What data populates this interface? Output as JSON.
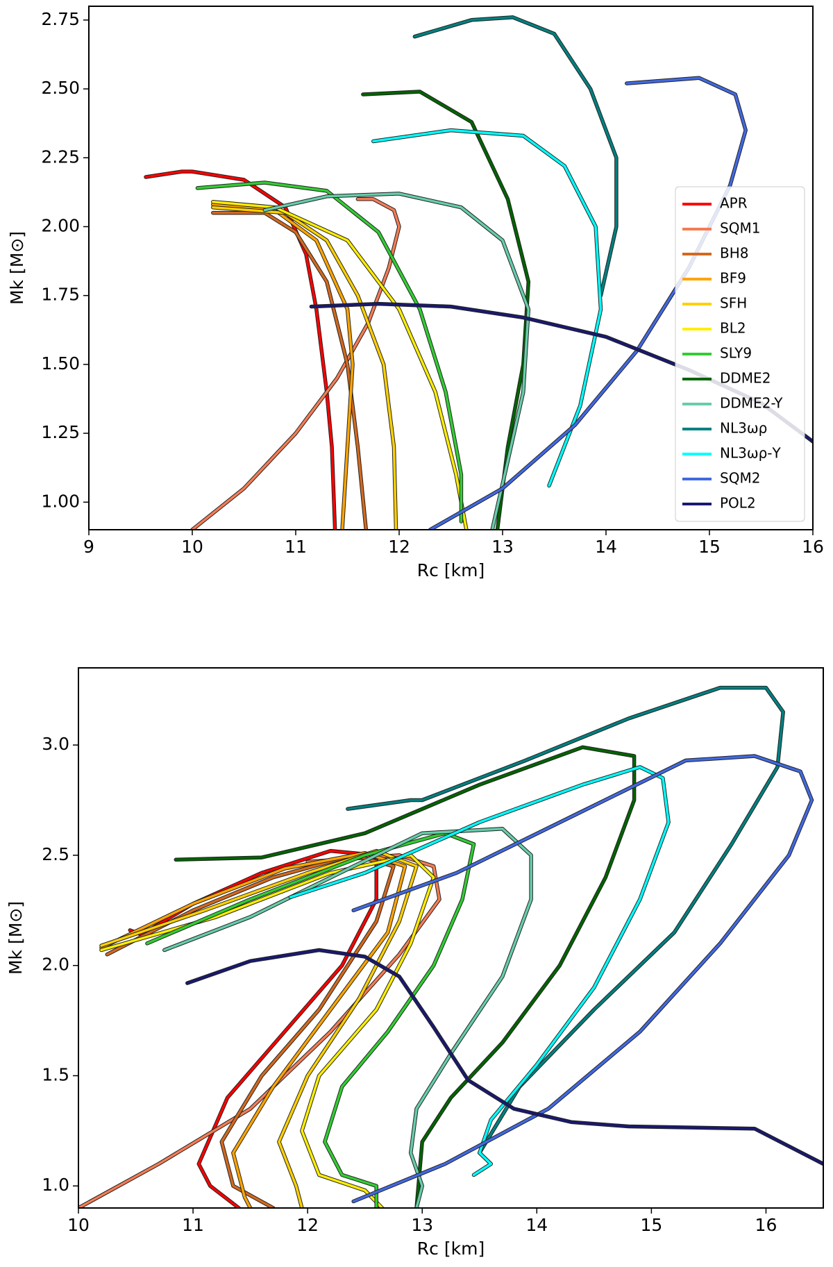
{
  "chart_data": [
    {
      "type": "line",
      "xlabel": "Rc [km]",
      "ylabel": "Mk [M⊙]",
      "xlim": [
        9,
        16
      ],
      "ylim": [
        0.9,
        2.8
      ],
      "xticks": [
        9,
        10,
        11,
        12,
        13,
        14,
        15,
        16
      ],
      "yticks": [
        {
          "value": 1,
          "label": "1.00"
        },
        1.25,
        {
          "value": 1.5,
          "label": "1.50"
        },
        1.75,
        {
          "value": 2,
          "label": "2.00"
        },
        2.25,
        {
          "value": 2.5,
          "label": "2.50"
        },
        2.75
      ],
      "legend": "lower right",
      "series": [
        {
          "name": "APR",
          "color": "#ff0000",
          "x": [
            9.55,
            9.9,
            10.0,
            10.5,
            10.9,
            11.1,
            11.2,
            11.3,
            11.35,
            11.38
          ],
          "values": [
            2.18,
            2.2,
            2.2,
            2.17,
            2.07,
            1.9,
            1.7,
            1.4,
            1.2,
            0.9
          ]
        },
        {
          "name": "SQM1",
          "color": "#f47c54",
          "x": [
            10.0,
            10.5,
            11.0,
            11.4,
            11.7,
            11.9,
            12.0,
            11.95,
            11.75,
            11.6
          ],
          "values": [
            0.9,
            1.05,
            1.25,
            1.45,
            1.65,
            1.85,
            2.0,
            2.06,
            2.1,
            2.1
          ]
        },
        {
          "name": "BH8",
          "color": "#d2691e",
          "x": [
            10.2,
            10.7,
            11.0,
            11.3,
            11.5,
            11.6,
            11.68
          ],
          "values": [
            2.05,
            2.05,
            1.98,
            1.8,
            1.5,
            1.2,
            0.9
          ]
        },
        {
          "name": "BF9",
          "color": "#ffa500",
          "x": [
            10.2,
            10.8,
            11.2,
            11.5,
            11.55,
            11.5,
            11.45
          ],
          "values": [
            2.08,
            2.06,
            1.95,
            1.7,
            1.5,
            1.2,
            0.9
          ]
        },
        {
          "name": "SFH",
          "color": "#ffd000",
          "x": [
            10.2,
            10.9,
            11.3,
            11.6,
            11.85,
            11.95,
            11.97
          ],
          "values": [
            2.07,
            2.05,
            1.95,
            1.75,
            1.5,
            1.2,
            0.9
          ]
        },
        {
          "name": "BL2",
          "color": "#ffee00",
          "x": [
            10.2,
            10.8,
            11.5,
            12.0,
            12.35,
            12.55,
            12.65
          ],
          "values": [
            2.09,
            2.07,
            1.95,
            1.7,
            1.4,
            1.1,
            0.9
          ]
        },
        {
          "name": "SLY9",
          "color": "#32cd32",
          "x": [
            10.05,
            10.7,
            11.3,
            11.8,
            12.2,
            12.45,
            12.6,
            12.6
          ],
          "values": [
            2.14,
            2.16,
            2.13,
            1.98,
            1.7,
            1.4,
            1.1,
            0.93
          ]
        },
        {
          "name": "DDME2",
          "color": "#006400",
          "x": [
            11.65,
            12.2,
            12.7,
            13.05,
            13.25,
            13.2,
            13.05,
            12.95
          ],
          "values": [
            2.48,
            2.49,
            2.38,
            2.1,
            1.8,
            1.5,
            1.2,
            0.9
          ]
        },
        {
          "name": "DDME2-Y",
          "color": "#66cdaa",
          "x": [
            10.7,
            11.3,
            12.0,
            12.6,
            13.0,
            13.25,
            13.2,
            13.05,
            12.9
          ],
          "values": [
            2.06,
            2.11,
            2.12,
            2.07,
            1.95,
            1.7,
            1.4,
            1.15,
            0.9
          ]
        },
        {
          "name": "NL3ωρ",
          "color": "#008080",
          "x": [
            12.15,
            12.7,
            13.1,
            13.5,
            13.85,
            14.1,
            14.1,
            13.95
          ],
          "values": [
            2.69,
            2.75,
            2.76,
            2.7,
            2.5,
            2.25,
            2.0,
            1.75
          ]
        },
        {
          "name": "NL3ωρ-Y",
          "color": "#00ffff",
          "x": [
            11.75,
            12.5,
            13.2,
            13.6,
            13.9,
            13.95,
            13.75,
            13.45
          ],
          "values": [
            2.31,
            2.35,
            2.33,
            2.22,
            2.0,
            1.7,
            1.35,
            1.06
          ]
        },
        {
          "name": "SQM2",
          "color": "#4169e1",
          "x": [
            12.3,
            13.0,
            13.7,
            14.3,
            14.8,
            15.2,
            15.35,
            15.25,
            14.9,
            14.2
          ],
          "values": [
            0.9,
            1.05,
            1.28,
            1.55,
            1.85,
            2.15,
            2.35,
            2.48,
            2.54,
            2.52
          ]
        },
        {
          "name": "POL2",
          "color": "#191970",
          "x": [
            11.15,
            11.8,
            12.5,
            13.2,
            14.0,
            14.8,
            15.5,
            16.0
          ],
          "values": [
            1.71,
            1.72,
            1.71,
            1.67,
            1.6,
            1.48,
            1.36,
            1.22
          ]
        }
      ]
    },
    {
      "type": "line",
      "xlabel": "Rc [km]",
      "ylabel": "Mk [M⊙]",
      "xlim": [
        10,
        16.5
      ],
      "ylim": [
        0.9,
        3.35
      ],
      "xticks": [
        10,
        11,
        12,
        13,
        14,
        15,
        16
      ],
      "yticks": [
        {
          "value": 1,
          "label": "1.0"
        },
        1.5,
        {
          "value": 2,
          "label": "2.0"
        },
        2.5,
        {
          "value": 3,
          "label": "3.0"
        }
      ],
      "series": [
        {
          "color": "#ff0000",
          "x": [
            10.45,
            10.55,
            11.0,
            11.6,
            12.2,
            12.6,
            12.6,
            12.3,
            11.8,
            11.3,
            11.05,
            11.15,
            11.4
          ],
          "values": [
            2.16,
            2.14,
            2.28,
            2.42,
            2.52,
            2.5,
            2.3,
            2.0,
            1.7,
            1.4,
            1.1,
            1.0,
            0.9
          ]
        },
        {
          "color": "#f47c54",
          "x": [
            10.0,
            10.7,
            11.5,
            12.2,
            12.8,
            13.15,
            13.1,
            12.8,
            12.0
          ],
          "values": [
            0.9,
            1.1,
            1.35,
            1.7,
            2.05,
            2.3,
            2.45,
            2.5,
            2.47
          ]
        },
        {
          "color": "#d2691e",
          "x": [
            10.25,
            11.0,
            11.7,
            12.4,
            12.75,
            12.6,
            12.1,
            11.6,
            11.25,
            11.35,
            11.7
          ],
          "values": [
            2.05,
            2.25,
            2.4,
            2.5,
            2.45,
            2.2,
            1.8,
            1.5,
            1.2,
            1.0,
            0.9
          ]
        },
        {
          "color": "#ffa500",
          "x": [
            10.2,
            11.0,
            11.8,
            12.5,
            12.85,
            12.7,
            12.2,
            11.7,
            11.35,
            11.45,
            11.5
          ],
          "values": [
            2.08,
            2.28,
            2.44,
            2.51,
            2.45,
            2.15,
            1.8,
            1.45,
            1.15,
            0.95,
            0.9
          ]
        },
        {
          "color": "#ffd000",
          "x": [
            10.2,
            11.1,
            12.0,
            12.6,
            12.95,
            12.8,
            12.45,
            12.0,
            11.75,
            11.9,
            11.95
          ],
          "values": [
            2.09,
            2.25,
            2.42,
            2.52,
            2.45,
            2.2,
            1.85,
            1.5,
            1.2,
            1.0,
            0.9
          ]
        },
        {
          "color": "#ffee00",
          "x": [
            10.2,
            11.2,
            12.2,
            12.9,
            13.1,
            12.9,
            12.6,
            12.1,
            11.95,
            12.1,
            12.5,
            12.65
          ],
          "values": [
            2.07,
            2.22,
            2.42,
            2.5,
            2.4,
            2.1,
            1.8,
            1.5,
            1.25,
            1.05,
            0.98,
            0.9
          ]
        },
        {
          "color": "#32cd32",
          "x": [
            10.6,
            11.5,
            12.5,
            13.2,
            13.45,
            13.35,
            13.1,
            12.7,
            12.3,
            12.15,
            12.3,
            12.6,
            12.6
          ],
          "values": [
            2.1,
            2.3,
            2.5,
            2.6,
            2.55,
            2.3,
            2.0,
            1.7,
            1.45,
            1.2,
            1.05,
            1.0,
            0.9
          ]
        },
        {
          "color": "#006400",
          "x": [
            10.85,
            11.6,
            12.5,
            13.5,
            14.4,
            14.85,
            14.85,
            14.6,
            14.2,
            13.7,
            13.25,
            13.0,
            12.95
          ],
          "values": [
            2.48,
            2.49,
            2.6,
            2.82,
            2.99,
            2.95,
            2.75,
            2.4,
            2.0,
            1.65,
            1.4,
            1.2,
            0.9
          ]
        },
        {
          "color": "#66cdaa",
          "x": [
            10.75,
            11.5,
            12.4,
            13.0,
            13.7,
            13.95,
            13.95,
            13.7,
            13.25,
            12.95,
            12.9,
            13.0,
            12.95
          ],
          "values": [
            2.07,
            2.22,
            2.45,
            2.6,
            2.62,
            2.5,
            2.3,
            1.95,
            1.6,
            1.35,
            1.15,
            1.0,
            0.9
          ]
        },
        {
          "color": "#008080",
          "x": [
            12.35,
            12.9,
            13.0,
            13.9,
            14.8,
            15.6,
            16.0,
            16.15,
            16.1,
            15.7,
            15.2,
            14.5,
            13.85,
            13.5
          ],
          "values": [
            2.71,
            2.75,
            2.75,
            2.93,
            3.12,
            3.26,
            3.26,
            3.15,
            2.9,
            2.55,
            2.15,
            1.8,
            1.45,
            1.15
          ]
        },
        {
          "color": "#00ffff",
          "x": [
            11.85,
            12.5,
            13.5,
            14.4,
            14.9,
            15.1,
            15.15,
            14.9,
            14.5,
            14.0,
            13.6,
            13.5,
            13.6,
            13.45
          ],
          "values": [
            2.31,
            2.42,
            2.65,
            2.82,
            2.9,
            2.85,
            2.65,
            2.3,
            1.9,
            1.55,
            1.3,
            1.15,
            1.1,
            1.05
          ]
        },
        {
          "color": "#4169e1",
          "x": [
            12.4,
            13.2,
            14.1,
            14.9,
            15.6,
            16.2,
            16.4,
            16.3,
            15.9,
            15.3,
            14.4,
            13.3,
            12.4
          ],
          "values": [
            0.93,
            1.1,
            1.35,
            1.7,
            2.1,
            2.5,
            2.75,
            2.88,
            2.95,
            2.93,
            2.7,
            2.42,
            2.25
          ]
        },
        {
          "color": "#191970",
          "x": [
            10.95,
            11.5,
            12.1,
            12.5,
            12.8,
            13.1,
            13.4,
            13.8,
            14.3,
            14.8,
            15.9,
            16.5
          ],
          "values": [
            1.92,
            2.02,
            2.07,
            2.04,
            1.95,
            1.72,
            1.48,
            1.35,
            1.29,
            1.27,
            1.26,
            1.1
          ]
        }
      ]
    }
  ]
}
